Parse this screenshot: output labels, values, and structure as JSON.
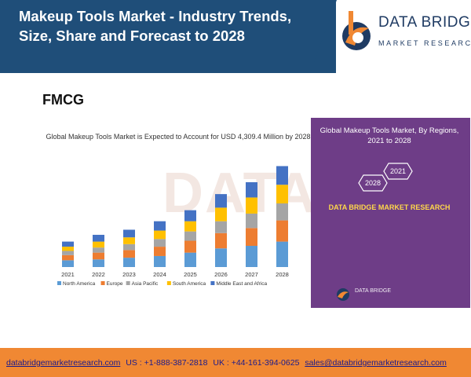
{
  "header": {
    "title": "Makeup Tools Market - Industry Trends, Size, Share and Forecast to 2028"
  },
  "logo": {
    "name": "DATA BRIDGE",
    "tagline": "MARKET RESEARCH"
  },
  "section_label": "FMCG",
  "watermark": "DATA",
  "side_panel": {
    "title": "Global Makeup Tools Market, By Regions, 2021 to 2028",
    "hex_2021": "2021",
    "hex_2028": "2028",
    "brand": "DATA BRIDGE MARKET RESEARCH",
    "logo_text": "DATA BRIDGE"
  },
  "footer": {
    "website": "databridgemarketresearch.com",
    "us_phone": "US : +1-888-387-2818",
    "uk_phone": "UK : +44-161-394-0625",
    "email": "sales@databridgemarketresearch.com"
  },
  "colors": {
    "header_bg": "#1f4e79",
    "panel_bg": "#6e3d87",
    "footer_bg": "#f08833"
  },
  "chart_data": {
    "type": "bar",
    "stacked": true,
    "title": "Global Makeup Tools Market is Expected to Account for USD 4,309.4 Million by 2028",
    "categories": [
      "2021",
      "2022",
      "2023",
      "2024",
      "2025",
      "2026",
      "2027",
      "2028"
    ],
    "series": [
      {
        "name": "North America",
        "color": "#5b9bd5",
        "values": [
          8,
          9,
          11,
          13,
          17,
          22,
          25,
          30
        ]
      },
      {
        "name": "Europe",
        "color": "#ed7d31",
        "values": [
          6,
          8,
          9,
          11,
          14,
          18,
          21,
          25
        ]
      },
      {
        "name": "Asia Pacific",
        "color": "#a5a5a5",
        "values": [
          5,
          6,
          7,
          9,
          11,
          14,
          17,
          20
        ]
      },
      {
        "name": "South America",
        "color": "#ffc000",
        "values": [
          5,
          7,
          8,
          10,
          12,
          16,
          19,
          22
        ]
      },
      {
        "name": "Middle East and Africa",
        "color": "#4472c4",
        "values": [
          6,
          8,
          9,
          11,
          13,
          16,
          18,
          22
        ]
      }
    ],
    "legend_position": "bottom",
    "grid": false,
    "ylim": [
      0,
      125
    ]
  }
}
